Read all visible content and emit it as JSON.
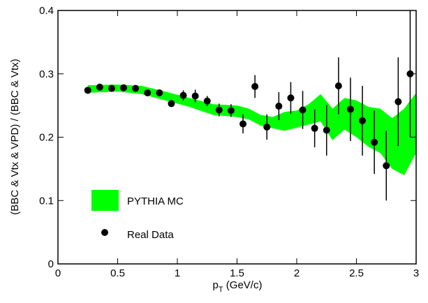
{
  "chart_data": {
    "type": "scatter",
    "x_label": {
      "main": "p",
      "sub": "T",
      "rest": " (GeV/c)"
    },
    "y_label": "(BBC & Vtx & VPD) / (BBC & Vtx)",
    "xlim": [
      0,
      3
    ],
    "ylim": [
      0,
      0.4
    ],
    "xticks": [
      0,
      0.5,
      1,
      1.5,
      2,
      2.5,
      3
    ],
    "yticks": [
      0,
      0.1,
      0.2,
      0.3,
      0.4
    ],
    "legend_loc": "lower left",
    "series": [
      {
        "name": "PYTHIA MC",
        "type": "band",
        "color": "#00ff00",
        "x": [
          0.25,
          0.5,
          0.7,
          0.9,
          1.1,
          1.3,
          1.5,
          1.6,
          1.7,
          1.8,
          1.9,
          2.0,
          2.1,
          2.2,
          2.3,
          2.4,
          2.5,
          2.6,
          2.7,
          2.8,
          2.9,
          3.0
        ],
        "upper": [
          0.282,
          0.283,
          0.281,
          0.272,
          0.262,
          0.252,
          0.25,
          0.245,
          0.235,
          0.232,
          0.24,
          0.242,
          0.252,
          0.268,
          0.245,
          0.262,
          0.258,
          0.248,
          0.245,
          0.23,
          0.245,
          0.27
        ],
        "lower": [
          0.27,
          0.272,
          0.268,
          0.258,
          0.248,
          0.235,
          0.232,
          0.228,
          0.218,
          0.214,
          0.21,
          0.215,
          0.22,
          0.225,
          0.195,
          0.212,
          0.2,
          0.185,
          0.175,
          0.15,
          0.14,
          0.175
        ]
      },
      {
        "name": "Real Data",
        "type": "points",
        "color": "#000000",
        "x": [
          0.25,
          0.35,
          0.45,
          0.55,
          0.65,
          0.75,
          0.85,
          0.95,
          1.05,
          1.15,
          1.25,
          1.35,
          1.45,
          1.55,
          1.65,
          1.75,
          1.85,
          1.95,
          2.05,
          2.15,
          2.25,
          2.35,
          2.45,
          2.55,
          2.65,
          2.75,
          2.85,
          2.95
        ],
        "values": [
          0.274,
          0.279,
          0.277,
          0.278,
          0.277,
          0.27,
          0.27,
          0.253,
          0.266,
          0.265,
          0.257,
          0.243,
          0.242,
          0.221,
          0.28,
          0.216,
          0.249,
          0.262,
          0.243,
          0.214,
          0.211,
          0.281,
          0.244,
          0.226,
          0.192,
          0.155,
          0.256,
          0.3
        ],
        "errors": [
          0.003,
          0.003,
          0.003,
          0.003,
          0.003,
          0.004,
          0.004,
          0.005,
          0.008,
          0.01,
          0.008,
          0.01,
          0.01,
          0.015,
          0.018,
          0.02,
          0.022,
          0.025,
          0.03,
          0.03,
          0.04,
          0.045,
          0.05,
          0.055,
          0.05,
          0.055,
          0.07,
          0.1
        ]
      }
    ]
  }
}
